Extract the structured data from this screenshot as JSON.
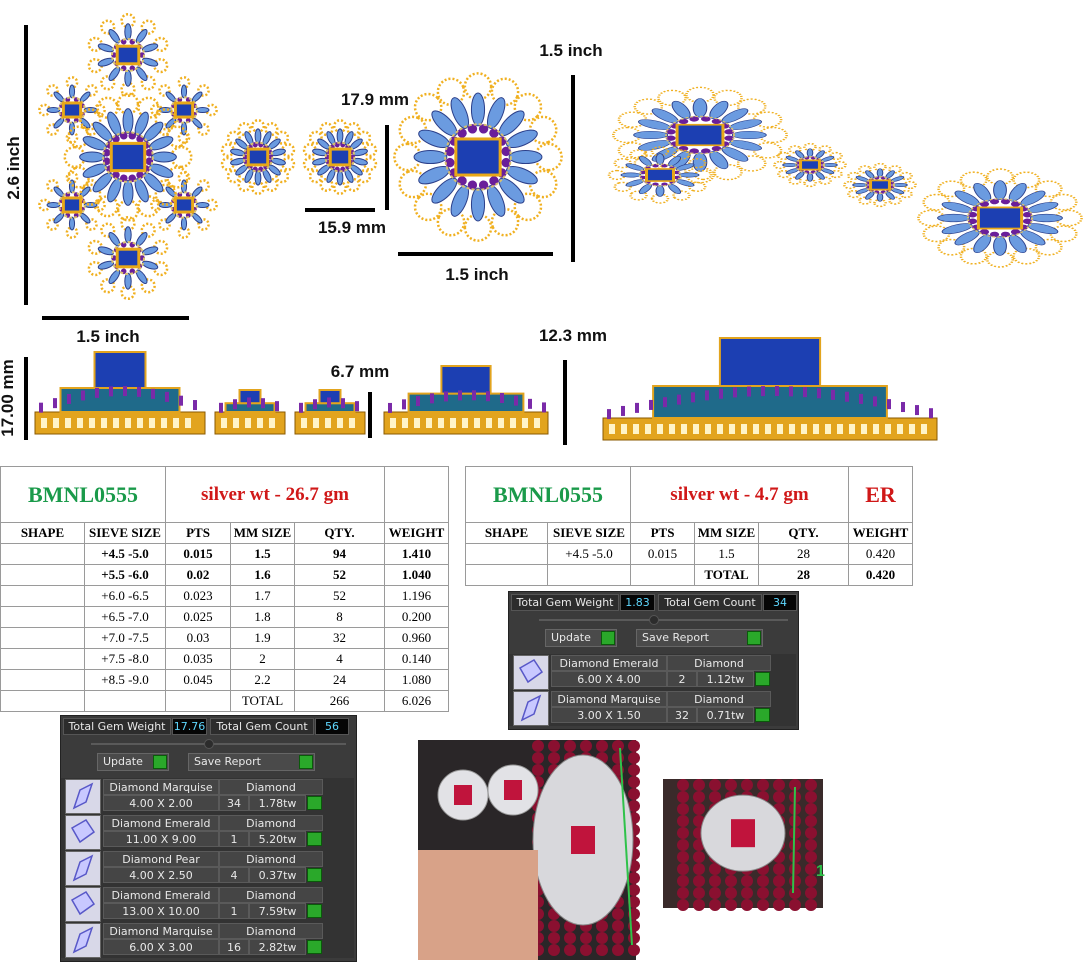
{
  "dimensions": {
    "pendant_height": "2.6 inch",
    "pendant_width": "1.5 inch",
    "stud_height": "17.9 mm",
    "stud_width": "15.9 mm",
    "earring_width": "1.5 inch",
    "earring_height": "1.5 inch",
    "earring_depth": "12.3 mm",
    "pendant_depth": "17.00 mm",
    "stud_depth": "6.7 mm"
  },
  "necklace_table": {
    "code": "BMNL0555",
    "silver_weight": "silver wt - 26.7 gm",
    "headers": [
      "SHAPE",
      "SIEVE SIZE",
      "PTS",
      "MM SIZE",
      "QTY.",
      "WEIGHT"
    ],
    "rows": [
      {
        "sieve": "+4.5 -5.0",
        "pts": "0.015",
        "mm": "1.5",
        "qty": "94",
        "weight": "1.410"
      },
      {
        "sieve": "+5.5 -6.0",
        "pts": "0.02",
        "mm": "1.6",
        "qty": "52",
        "weight": "1.040"
      },
      {
        "sieve": "+6.0 -6.5",
        "pts": "0.023",
        "mm": "1.7",
        "qty": "52",
        "weight": "1.196"
      },
      {
        "sieve": "+6.5 -7.0",
        "pts": "0.025",
        "mm": "1.8",
        "qty": "8",
        "weight": "0.200"
      },
      {
        "sieve": "+7.0 -7.5",
        "pts": "0.03",
        "mm": "1.9",
        "qty": "32",
        "weight": "0.960"
      },
      {
        "sieve": "+7.5 -8.0",
        "pts": "0.035",
        "mm": "2",
        "qty": "4",
        "weight": "0.140"
      },
      {
        "sieve": "+8.5 -9.0",
        "pts": "0.045",
        "mm": "2.2",
        "qty": "24",
        "weight": "1.080"
      }
    ],
    "total": {
      "label": "TOTAL",
      "qty": "266",
      "weight": "6.026"
    }
  },
  "earring_table": {
    "code": "BMNL0555",
    "silver_weight": "silver wt - 4.7 gm",
    "tag": "ER",
    "headers": [
      "SHAPE",
      "SIEVE SIZE",
      "PTS",
      "MM SIZE",
      "QTY.",
      "WEIGHT"
    ],
    "rows": [
      {
        "sieve": "+4.5 -5.0",
        "pts": "0.015",
        "mm": "1.5",
        "qty": "28",
        "weight": "0.420"
      }
    ],
    "total": {
      "label": "TOTAL",
      "qty": "28",
      "weight": "0.420"
    }
  },
  "earring_gem_panel": {
    "total_weight_label": "Total Gem Weight",
    "total_weight": "1.83",
    "total_count_label": "Total Gem Count",
    "total_count": "34",
    "update": "Update",
    "save_report": "Save Report",
    "items": [
      {
        "name": "Diamond Emerald",
        "size": "6.00 X 4.00",
        "material": "Diamond",
        "count": "2",
        "weight": "1.12tw"
      },
      {
        "name": "Diamond Marquise",
        "size": "3.00 X 1.50",
        "material": "Diamond",
        "count": "32",
        "weight": "0.71tw"
      }
    ]
  },
  "necklace_gem_panel": {
    "total_weight_label": "Total Gem Weight",
    "total_weight": "17.76",
    "total_count_label": "Total Gem Count",
    "total_count": "56",
    "update": "Update",
    "save_report": "Save Report",
    "items": [
      {
        "name": "Diamond Marquise",
        "size": "4.00 X 2.00",
        "material": "Diamond",
        "count": "34",
        "weight": "1.78tw"
      },
      {
        "name": "Diamond Emerald",
        "size": "11.00 X 9.00",
        "material": "Diamond",
        "count": "1",
        "weight": "5.20tw"
      },
      {
        "name": "Diamond Pear",
        "size": "4.00 X 2.50",
        "material": "Diamond",
        "count": "4",
        "weight": "0.37tw"
      },
      {
        "name": "Diamond Emerald",
        "size": "13.00 X 10.00",
        "material": "Diamond",
        "count": "1",
        "weight": "7.59tw"
      },
      {
        "name": "Diamond Marquise",
        "size": "6.00 X 3.00",
        "material": "Diamond",
        "count": "16",
        "weight": "2.82tw"
      }
    ]
  },
  "photo_mark": "1"
}
